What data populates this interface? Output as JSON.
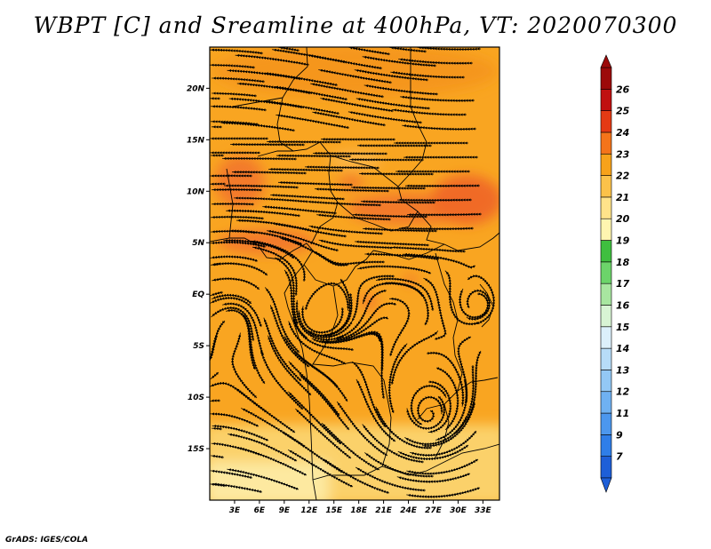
{
  "title": "WBPT [C] and Sreamline at 400hPa, VT: 2020070300",
  "credit": "GrADS: IGES/COLA",
  "map": {
    "lon_labels": [
      "3E",
      "6E",
      "9E",
      "12E",
      "15E",
      "18E",
      "21E",
      "24E",
      "27E",
      "30E",
      "33E"
    ],
    "lat_labels": [
      "20N",
      "15N",
      "10N",
      "5N",
      "EQ",
      "5S",
      "10S",
      "15S"
    ],
    "lon_range": [
      0,
      35
    ],
    "lat_range": [
      -20,
      24
    ]
  },
  "colorbar": {
    "labels": [
      "7",
      "9",
      "11",
      "12",
      "13",
      "14",
      "15",
      "16",
      "17",
      "18",
      "19",
      "20",
      "21",
      "22",
      "23",
      "24",
      "25",
      "26"
    ],
    "colors": [
      "#1e5fd8",
      "#2f7ee8",
      "#4c97ee",
      "#6fb1f2",
      "#93c8f5",
      "#b7dcf8",
      "#dcf0fb",
      "#d8f4d4",
      "#a8e6a0",
      "#6cd46a",
      "#3fbf3f",
      "#fff5b0",
      "#ffe38a",
      "#fbc24a",
      "#f7a21a",
      "#f4741a",
      "#e43a14",
      "#c01010",
      "#9c0a0a"
    ]
  }
}
